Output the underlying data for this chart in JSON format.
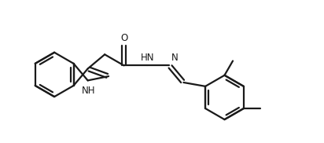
{
  "background_color": "#ffffff",
  "line_color": "#1a1a1a",
  "line_width": 1.6,
  "font_size": 8.5,
  "figsize": [
    4.12,
    1.82
  ],
  "dpi": 100,
  "xlim": [
    0.0,
    10.5
  ],
  "ylim": [
    0.5,
    5.0
  ]
}
